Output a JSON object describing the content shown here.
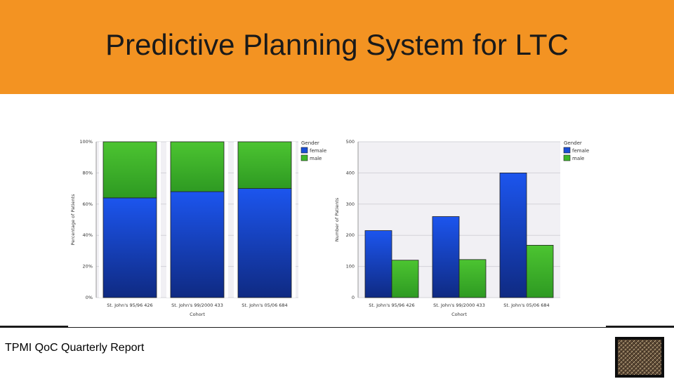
{
  "header": {
    "title": "Predictive Planning System for LTC"
  },
  "footer": {
    "text": "TPMI QoC Quarterly Report"
  },
  "colors": {
    "header_bg": "#f39322",
    "female": "#1a4fd6",
    "male": "#3db82a"
  },
  "chart_data": [
    {
      "type": "bar",
      "stacked": true,
      "categories": [
        "St. John's 95/96 426",
        "St. John's 99/2000 433",
        "St. John's 05/06 684"
      ],
      "series": [
        {
          "name": "female",
          "values": [
            64,
            68,
            70
          ]
        },
        {
          "name": "male",
          "values": [
            36,
            32,
            30
          ]
        }
      ],
      "xlabel": "Cohort",
      "ylabel": "Percentage of Patients",
      "ylim": [
        0,
        100
      ],
      "yticks": [
        "0%",
        "20%",
        "40%",
        "60%",
        "80%",
        "100%"
      ],
      "legend": {
        "title": "Gender",
        "placement": "right"
      },
      "grid": true
    },
    {
      "type": "bar",
      "stacked": false,
      "categories": [
        "St. John's 95/96 426",
        "St. John's 99/2000 433",
        "St. John's 05/06 684"
      ],
      "series": [
        {
          "name": "female",
          "values": [
            215,
            260,
            400
          ]
        },
        {
          "name": "male",
          "values": [
            120,
            122,
            168
          ]
        }
      ],
      "xlabel": "Cohort",
      "ylabel": "Number of Patients",
      "ylim": [
        0,
        500
      ],
      "yticks": [
        "0",
        "100",
        "200",
        "300",
        "400",
        "500"
      ],
      "legend": {
        "title": "Gender",
        "placement": "right"
      },
      "grid": true
    }
  ]
}
